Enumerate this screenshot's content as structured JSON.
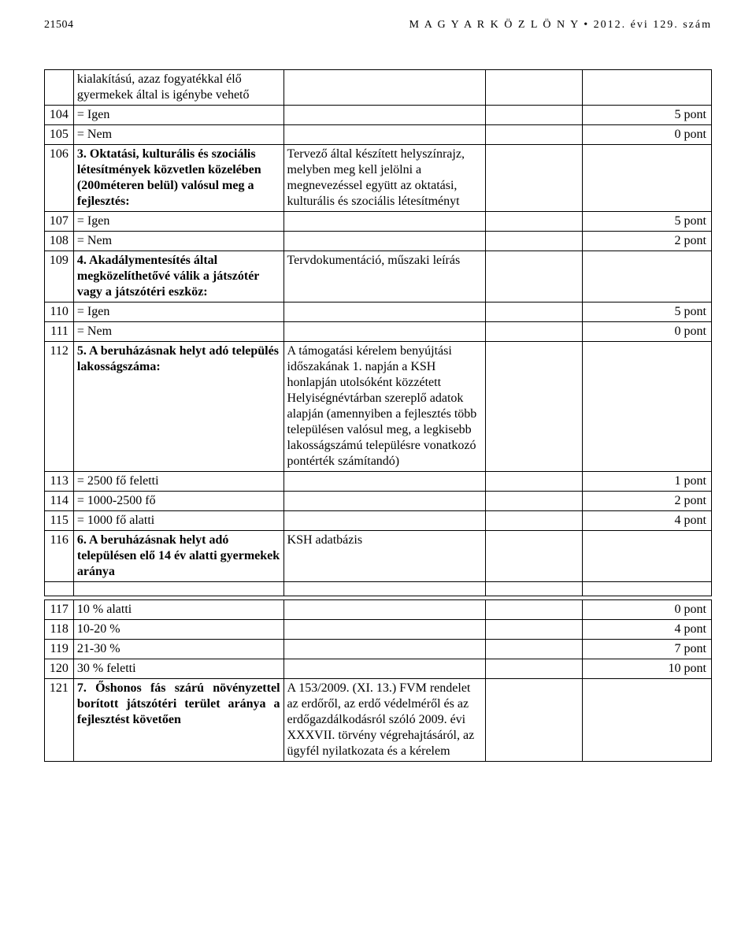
{
  "header": {
    "page_number": "21504",
    "title": "M A G Y A R   K Ö Z L Ö N Y • 2012. évi 129. szám"
  },
  "rows_top": [
    {
      "n": "",
      "c2": "kialakítású, azaz fogyatékkal élő gyermekek által is igénybe vehető",
      "c3": "",
      "c4": "",
      "pts": "",
      "bold": false
    },
    {
      "n": "104",
      "c2": "= Igen",
      "c3": "",
      "c4": "",
      "pts": "5 pont",
      "bold": false
    },
    {
      "n": "105",
      "c2": "= Nem",
      "c3": "",
      "c4": "",
      "pts": "0 pont",
      "bold": false
    },
    {
      "n": "106",
      "c2": "3. Oktatási, kulturális és szociális létesítmények közvetlen közelében (200méteren belül) valósul meg a fejlesztés:",
      "c3": " Tervező által készített helyszínrajz, melyben meg kell jelölni a megnevezéssel együtt az oktatási, kulturális és szociális létesítményt",
      "c4": "",
      "pts": "",
      "bold": true
    },
    {
      "n": "107",
      "c2": "= Igen",
      "c3": "",
      "c4": "",
      "pts": "5 pont",
      "bold": false
    },
    {
      "n": "108",
      "c2": "= Nem",
      "c3": "",
      "c4": "",
      "pts": "2 pont",
      "bold": false
    },
    {
      "n": "109",
      "c2": "4. Akadálymentesítés által megközelíthetővé válik a játszótér vagy a játszótéri eszköz:",
      "c3": " Tervdokumentáció, műszaki leírás",
      "c4": "",
      "pts": "",
      "bold": true
    },
    {
      "n": "110",
      "c2": "= Igen",
      "c3": "",
      "c4": "",
      "pts": "5 pont",
      "bold": false
    },
    {
      "n": "111",
      "c2": "= Nem",
      "c3": "",
      "c4": "",
      "pts": "0 pont",
      "bold": false
    },
    {
      "n": "112",
      "c2": "5. A beruházásnak helyt adó település lakosságszáma:",
      "c3": "A támogatási kérelem benyújtási időszakának 1. napján a KSH honlapján utolsóként közzétett Helyiségnévtárban szereplő adatok alapján (amennyiben a fejlesztés több településen valósul meg, a legkisebb lakosságszámú településre vonatkozó pontérték számítandó)",
      "c4": "",
      "pts": "",
      "bold": true
    },
    {
      "n": "113",
      "c2": "= 2500 fő feletti",
      "c3": "",
      "c4": "",
      "pts": "1 pont",
      "bold": false
    },
    {
      "n": "114",
      "c2": "= 1000-2500 fő",
      "c3": "",
      "c4": "",
      "pts": "2 pont",
      "bold": false
    },
    {
      "n": "115",
      "c2": "= 1000 fő alatti",
      "c3": "",
      "c4": "",
      "pts": "4 pont",
      "bold": false
    },
    {
      "n": "116",
      "c2": "6. A beruházásnak helyt adó településen elő 14 év alatti gyermekek aránya",
      "c3": "KSH adatbázis",
      "c4": "",
      "pts": "",
      "bold": true
    }
  ],
  "rows_bottom": [
    {
      "n": "117",
      "c2": "10 % alatti",
      "c3": "",
      "c4": "",
      "pts": "0 pont",
      "bold": false
    },
    {
      "n": "118",
      "c2": "10-20 %",
      "c3": "",
      "c4": "",
      "pts": "4 pont",
      "bold": false
    },
    {
      "n": "119",
      "c2": "21-30 %",
      "c3": "",
      "c4": "",
      "pts": "7 pont",
      "bold": false
    },
    {
      "n": "120",
      "c2": "30 % feletti",
      "c3": "",
      "c4": "",
      "pts": "10 pont",
      "bold": false
    },
    {
      "n": "121",
      "c2": "7. Őshonos fás szárú növényzettel borított játszótéri terület aránya a fejlesztést követően",
      "c3": "A 153/2009. (XI. 13.) FVM rendelet az erdőről, az erdő védelméről és az erdőgazdálkodásról szóló 2009. évi XXXVII. törvény végrehajtásáról, az ügyfél nyilatkozata és a kérelem",
      "c4": "",
      "pts": "",
      "bold": true,
      "justify": true
    }
  ]
}
